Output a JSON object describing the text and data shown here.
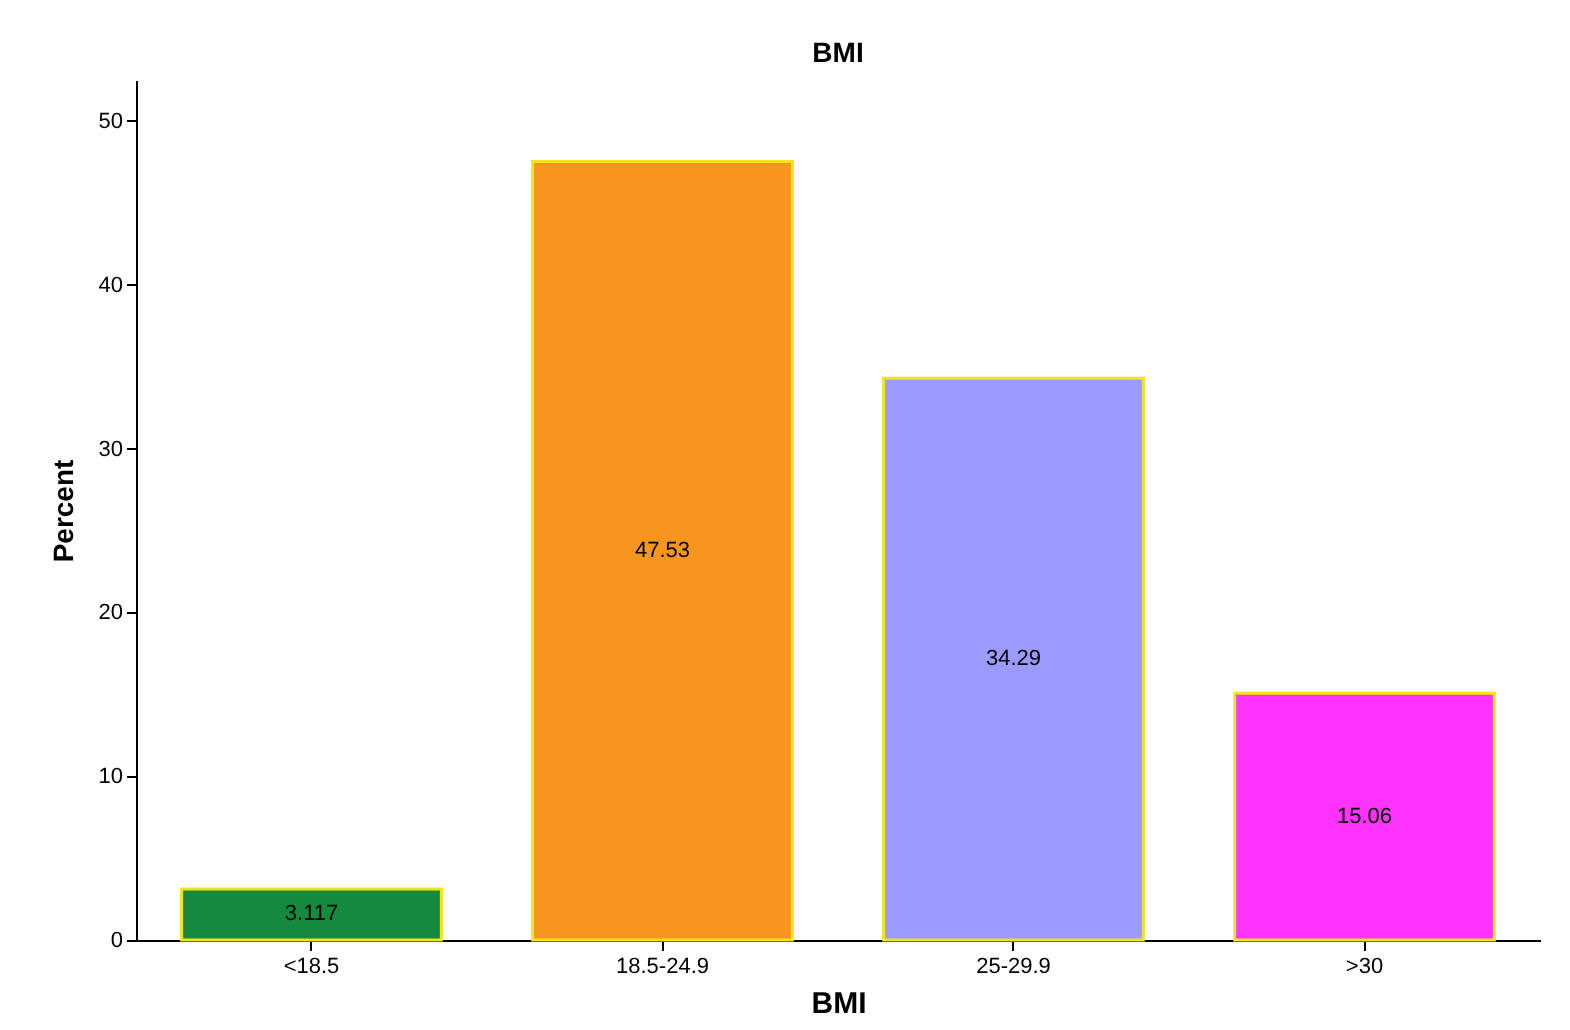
{
  "chart_data": {
    "type": "bar",
    "title": "BMI",
    "xlabel": "BMI",
    "ylabel": "Percent",
    "categories": [
      "<18.5",
      "18.5-24.9",
      "25-29.9",
      ">30"
    ],
    "values": [
      3.117,
      47.53,
      34.29,
      15.06
    ],
    "colors": [
      "#138a3e",
      "#f7961f",
      "#9b9bff",
      "#ff33ff"
    ],
    "ylim": [
      0,
      52.5
    ],
    "yticks": [
      0,
      10,
      20,
      30,
      40,
      50
    ],
    "data_labels": true,
    "grid": false,
    "legend": false
  }
}
